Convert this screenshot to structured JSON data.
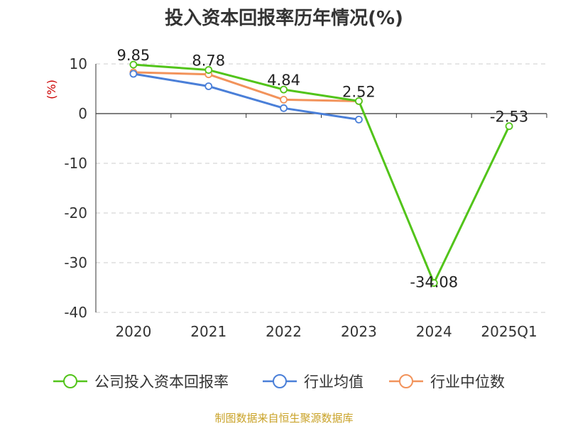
{
  "chart_data": {
    "type": "line",
    "title": "投入资本回报率历年情况(%)",
    "ylabel": "(%)",
    "categories": [
      "2020",
      "2021",
      "2022",
      "2023",
      "2024",
      "2025Q1"
    ],
    "ylim": [
      -40,
      10
    ],
    "yticks": [
      10,
      0,
      -10,
      -20,
      -30,
      -40
    ],
    "grid": true,
    "legend_position": "bottom",
    "series": [
      {
        "name": "公司投入资本回报率",
        "color": "#52c41a",
        "values": [
          9.85,
          8.78,
          4.84,
          2.52,
          -34.08,
          -2.53
        ],
        "labels": [
          "9.85",
          "8.78",
          "4.84",
          "2.52",
          "-34.08",
          "-2.53"
        ]
      },
      {
        "name": "行业均值",
        "color": "#4a7fd8",
        "values": [
          8.0,
          5.5,
          1.1,
          -1.2,
          null,
          null
        ]
      },
      {
        "name": "行业中位数",
        "color": "#f2935b",
        "values": [
          8.3,
          7.9,
          2.8,
          2.5,
          null,
          null
        ]
      }
    ],
    "source": "制图数据来自恒生聚源数据库"
  }
}
